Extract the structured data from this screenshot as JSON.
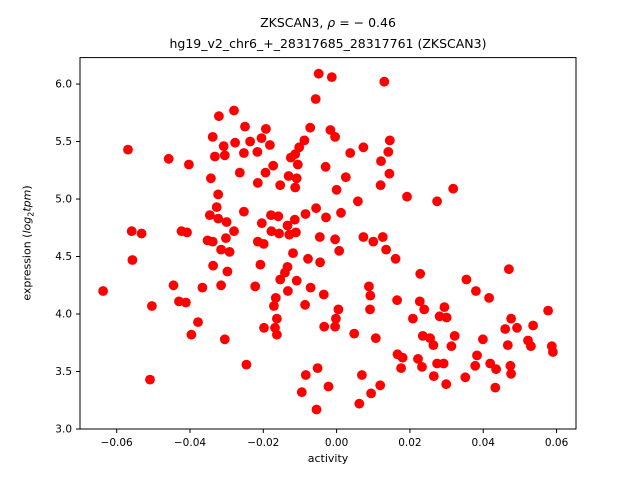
{
  "figure": {
    "title_prefix": "ZKSCAN3, ",
    "title_rho": "ρ",
    "title_suffix": " = − 0.46",
    "subtitle": "hg19_v2_chr6_+_28317685_28317761 (ZKSCAN3)",
    "xlabel": "activity",
    "ylabel_prefix": "expression (",
    "ylabel_log": "log",
    "ylabel_sub": "2",
    "ylabel_var": "tpm",
    "ylabel_suffix": ")"
  },
  "chart_data": {
    "type": "scatter",
    "title": "ZKSCAN3, ρ = − 0.46",
    "subtitle": "hg19_v2_chr6_+_28317685_28317761 (ZKSCAN3)",
    "xlabel": "activity",
    "ylabel": "expression (log2tpm)",
    "legend": "none",
    "grid": false,
    "marker_color": "#ff0000",
    "marker_radius_px": 4.9,
    "axis_color": "#000000",
    "xlim": [
      -0.07,
      0.0653
    ],
    "ylim": [
      3.0,
      6.23
    ],
    "xtick_values": [
      -0.06,
      -0.04,
      -0.02,
      0.0,
      0.02,
      0.04,
      0.06
    ],
    "xtick_labels": [
      "−0.06",
      "−0.04",
      "−0.02",
      "0.00",
      "0.02",
      "0.04",
      "0.06"
    ],
    "ytick_values": [
      3.0,
      3.5,
      4.0,
      4.5,
      5.0,
      5.5,
      6.0
    ],
    "ytick_labels": [
      "3.0",
      "3.5",
      "4.0",
      "4.5",
      "5.0",
      "5.5",
      "6.0"
    ],
    "points": [
      [
        -0.0569,
        5.43
      ],
      [
        -0.0458,
        5.35
      ],
      [
        -0.0403,
        5.3
      ],
      [
        -0.0321,
        5.72
      ],
      [
        -0.028,
        5.77
      ],
      [
        -0.0338,
        5.54
      ],
      [
        -0.0308,
        5.46
      ],
      [
        -0.0277,
        5.49
      ],
      [
        -0.0332,
        5.37
      ],
      [
        -0.0305,
        5.38
      ],
      [
        -0.025,
        5.63
      ],
      [
        -0.0253,
        5.4
      ],
      [
        -0.0343,
        5.18
      ],
      [
        -0.0264,
        5.23
      ],
      [
        -0.0049,
        6.09
      ],
      [
        -0.0013,
        6.06
      ],
      [
        0.013,
        6.02
      ],
      [
        -0.0057,
        5.87
      ],
      [
        -0.0193,
        5.61
      ],
      [
        -0.0205,
        5.53
      ],
      [
        -0.0236,
        5.5
      ],
      [
        -0.0182,
        5.47
      ],
      [
        -0.0216,
        5.41
      ],
      [
        -0.0072,
        5.62
      ],
      [
        -0.0017,
        5.6
      ],
      [
        -0.0004,
        5.54
      ],
      [
        -0.0088,
        5.51
      ],
      [
        -0.0102,
        5.45
      ],
      [
        -0.0113,
        5.39
      ],
      [
        -0.0125,
        5.36
      ],
      [
        0.0037,
        5.4
      ],
      [
        0.0073,
        5.45
      ],
      [
        0.0145,
        5.51
      ],
      [
        0.0141,
        5.41
      ],
      [
        -0.0106,
        5.3
      ],
      [
        -0.003,
        5.28
      ],
      [
        -0.0173,
        5.29
      ],
      [
        0.0121,
        5.33
      ],
      [
        -0.0194,
        5.23
      ],
      [
        -0.0131,
        5.2
      ],
      [
        -0.0109,
        5.18
      ],
      [
        0.0144,
        5.22
      ],
      [
        0.0025,
        5.19
      ],
      [
        -0.0323,
        5.04
      ],
      [
        -0.0327,
        4.93
      ],
      [
        -0.0346,
        4.86
      ],
      [
        -0.0323,
        4.83
      ],
      [
        -0.03,
        4.8
      ],
      [
        -0.028,
        4.72
      ],
      [
        -0.0559,
        4.72
      ],
      [
        -0.0532,
        4.7
      ],
      [
        -0.0423,
        4.72
      ],
      [
        -0.0408,
        4.71
      ],
      [
        -0.0352,
        4.64
      ],
      [
        -0.0338,
        4.63
      ],
      [
        -0.0302,
        4.66
      ],
      [
        -0.0315,
        4.56
      ],
      [
        -0.0292,
        4.54
      ],
      [
        -0.0557,
        4.47
      ],
      [
        -0.0337,
        4.42
      ],
      [
        -0.0298,
        4.37
      ],
      [
        -0.0445,
        4.25
      ],
      [
        -0.0366,
        4.23
      ],
      [
        -0.0315,
        4.25
      ],
      [
        -0.0637,
        4.2
      ],
      [
        -0.043,
        4.11
      ],
      [
        -0.0411,
        4.1
      ],
      [
        -0.0504,
        4.07
      ],
      [
        -0.0215,
        5.14
      ],
      [
        -0.0154,
        5.12
      ],
      [
        -0.0113,
        5.1
      ],
      [
        0.0,
        5.08
      ],
      [
        0.012,
        5.12
      ],
      [
        0.0192,
        5.02
      ],
      [
        0.0058,
        4.98
      ],
      [
        -0.0056,
        4.92
      ],
      [
        -0.0029,
        4.84
      ],
      [
        0.0012,
        4.88
      ],
      [
        -0.0085,
        4.87
      ],
      [
        -0.0253,
        4.89
      ],
      [
        -0.0179,
        4.86
      ],
      [
        -0.0159,
        4.85
      ],
      [
        -0.0204,
        4.79
      ],
      [
        -0.0178,
        4.72
      ],
      [
        -0.0157,
        4.7
      ],
      [
        -0.0134,
        4.77
      ],
      [
        -0.0114,
        4.82
      ],
      [
        -0.0111,
        4.71
      ],
      [
        -0.0129,
        4.69
      ],
      [
        -0.0215,
        4.63
      ],
      [
        -0.0199,
        4.61
      ],
      [
        -0.0046,
        4.67
      ],
      [
        -0.0004,
        4.65
      ],
      [
        0.0073,
        4.67
      ],
      [
        0.01,
        4.63
      ],
      [
        0.0126,
        4.67
      ],
      [
        0.0007,
        4.55
      ],
      [
        0.0135,
        4.56
      ],
      [
        -0.0119,
        4.53
      ],
      [
        -0.0078,
        4.48
      ],
      [
        -0.0208,
        4.43
      ],
      [
        -0.0134,
        4.41
      ],
      [
        -0.0141,
        4.36
      ],
      [
        -0.0045,
        4.45
      ],
      [
        0.0161,
        4.48
      ],
      [
        -0.0154,
        4.3
      ],
      [
        -0.0109,
        4.29
      ],
      [
        -0.0133,
        4.2
      ],
      [
        -0.0071,
        4.23
      ],
      [
        -0.0222,
        4.24
      ],
      [
        0.0088,
        4.24
      ],
      [
        0.0092,
        4.16
      ],
      [
        -0.0035,
        4.17
      ],
      [
        -0.0166,
        4.14
      ],
      [
        -0.0171,
        4.07
      ],
      [
        -0.0086,
        4.08
      ],
      [
        0.0165,
        4.12
      ],
      [
        0.0318,
        5.09
      ],
      [
        0.0274,
        4.98
      ],
      [
        0.047,
        4.39
      ],
      [
        0.0228,
        4.35
      ],
      [
        0.0354,
        4.3
      ],
      [
        0.038,
        4.2
      ],
      [
        0.0416,
        4.14
      ],
      [
        0.0227,
        4.11
      ],
      [
        -0.0378,
        3.93
      ],
      [
        -0.0396,
        3.82
      ],
      [
        -0.0305,
        3.78
      ],
      [
        -0.0246,
        3.56
      ],
      [
        -0.0509,
        3.43
      ],
      [
        -0.0163,
        3.96
      ],
      [
        -0.0198,
        3.88
      ],
      [
        -0.0168,
        3.88
      ],
      [
        -0.0163,
        3.82
      ],
      [
        0.0005,
        4.04
      ],
      [
        -0.0002,
        3.96
      ],
      [
        -0.0034,
        3.89
      ],
      [
        -0.0004,
        3.89
      ],
      [
        0.0048,
        3.83
      ],
      [
        0.0091,
        4.04
      ],
      [
        0.0107,
        3.79
      ],
      [
        0.0166,
        3.65
      ],
      [
        0.018,
        3.62
      ],
      [
        0.0176,
        3.53
      ],
      [
        -0.0052,
        3.53
      ],
      [
        -0.0084,
        3.47
      ],
      [
        -0.0022,
        3.37
      ],
      [
        -0.0095,
        3.32
      ],
      [
        0.0069,
        3.47
      ],
      [
        0.0094,
        3.31
      ],
      [
        0.0119,
        3.38
      ],
      [
        0.0062,
        3.22
      ],
      [
        -0.0055,
        3.17
      ],
      [
        0.0208,
        3.96
      ],
      [
        0.0239,
        4.04
      ],
      [
        0.0294,
        4.06
      ],
      [
        0.0281,
        3.98
      ],
      [
        0.03,
        3.97
      ],
      [
        0.0577,
        4.03
      ],
      [
        0.0476,
        3.96
      ],
      [
        0.046,
        3.87
      ],
      [
        0.0492,
        3.88
      ],
      [
        0.0536,
        3.9
      ],
      [
        0.0235,
        3.81
      ],
      [
        0.0255,
        3.79
      ],
      [
        0.0264,
        3.73
      ],
      [
        0.0322,
        3.81
      ],
      [
        0.0313,
        3.72
      ],
      [
        0.0399,
        3.78
      ],
      [
        0.0467,
        3.73
      ],
      [
        0.0522,
        3.77
      ],
      [
        0.053,
        3.72
      ],
      [
        0.0587,
        3.72
      ],
      [
        0.059,
        3.67
      ],
      [
        0.0383,
        3.64
      ],
      [
        0.0378,
        3.55
      ],
      [
        0.0222,
        3.61
      ],
      [
        0.0233,
        3.54
      ],
      [
        0.0274,
        3.57
      ],
      [
        0.0292,
        3.57
      ],
      [
        0.0419,
        3.57
      ],
      [
        0.0435,
        3.52
      ],
      [
        0.0474,
        3.55
      ],
      [
        0.0476,
        3.48
      ],
      [
        0.0265,
        3.46
      ],
      [
        0.0351,
        3.45
      ],
      [
        0.0299,
        3.39
      ],
      [
        0.0433,
        3.36
      ]
    ]
  }
}
